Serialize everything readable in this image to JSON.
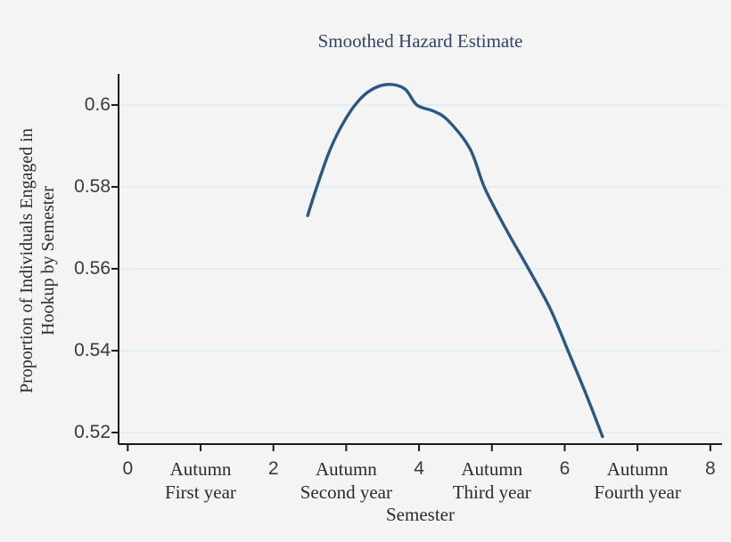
{
  "page": {
    "background": "#f4f4f4"
  },
  "title": {
    "text": "Smoothed Hazard Estimate",
    "color": "#2d4568"
  },
  "axes": {
    "x_title": "Semester",
    "y_title_line1": "Proportion of Individuals Engaged in",
    "y_title_line2": "Hookup by Semester"
  },
  "chart_data": {
    "type": "line",
    "title": "Smoothed Hazard Estimate",
    "xlabel": "Semester",
    "ylabel": "Proportion of Individuals Engaged in Hookup by Semester",
    "xlim": [
      -0.13,
      8.16
    ],
    "ylim": [
      0.517,
      0.608
    ],
    "grid": "horizontal",
    "legend": "none",
    "colors": {
      "axis": "#1a1a1a",
      "gridline": "#d9edef",
      "line": "#2a5783"
    },
    "y_ticks": [
      {
        "value": 0.52,
        "label": "0.52"
      },
      {
        "value": 0.54,
        "label": "0.54"
      },
      {
        "value": 0.56,
        "label": "0.56"
      },
      {
        "value": 0.58,
        "label": "0.58"
      },
      {
        "value": 0.6,
        "label": "0.6"
      }
    ],
    "x_ticks": [
      {
        "value": 0,
        "style": "number",
        "lines": [
          "0"
        ]
      },
      {
        "value": 1,
        "style": "text",
        "lines": [
          "Autumn",
          "First year"
        ]
      },
      {
        "value": 2,
        "style": "number",
        "lines": [
          "2"
        ]
      },
      {
        "value": 3,
        "style": "text",
        "lines": [
          "Autumn",
          "Second year"
        ]
      },
      {
        "value": 4,
        "style": "number",
        "lines": [
          "4"
        ]
      },
      {
        "value": 5,
        "style": "text",
        "lines": [
          "Autumn",
          "Third year"
        ]
      },
      {
        "value": 6,
        "style": "number",
        "lines": [
          "6"
        ]
      },
      {
        "value": 7,
        "style": "text",
        "lines": [
          "Autumn",
          "Fourth year"
        ]
      },
      {
        "value": 8,
        "style": "number",
        "lines": [
          "8"
        ]
      }
    ],
    "series": [
      {
        "name": "smoothed-hazard-estimate",
        "color": "#2a5783",
        "stroke_width": 3.4,
        "points": [
          [
            2.47,
            0.573
          ],
          [
            2.6,
            0.5802
          ],
          [
            2.75,
            0.5878
          ],
          [
            2.9,
            0.5937
          ],
          [
            3.1,
            0.5995
          ],
          [
            3.3,
            0.6032
          ],
          [
            3.55,
            0.605
          ],
          [
            3.8,
            0.604
          ],
          [
            3.97,
            0.6
          ],
          [
            4.2,
            0.5985
          ],
          [
            4.4,
            0.5962
          ],
          [
            4.7,
            0.5893
          ],
          [
            4.9,
            0.5798
          ],
          [
            5.2,
            0.5695
          ],
          [
            5.5,
            0.5601
          ],
          [
            5.8,
            0.5503
          ],
          [
            6.05,
            0.5398
          ],
          [
            6.3,
            0.5291
          ],
          [
            6.52,
            0.519
          ]
        ]
      }
    ]
  }
}
